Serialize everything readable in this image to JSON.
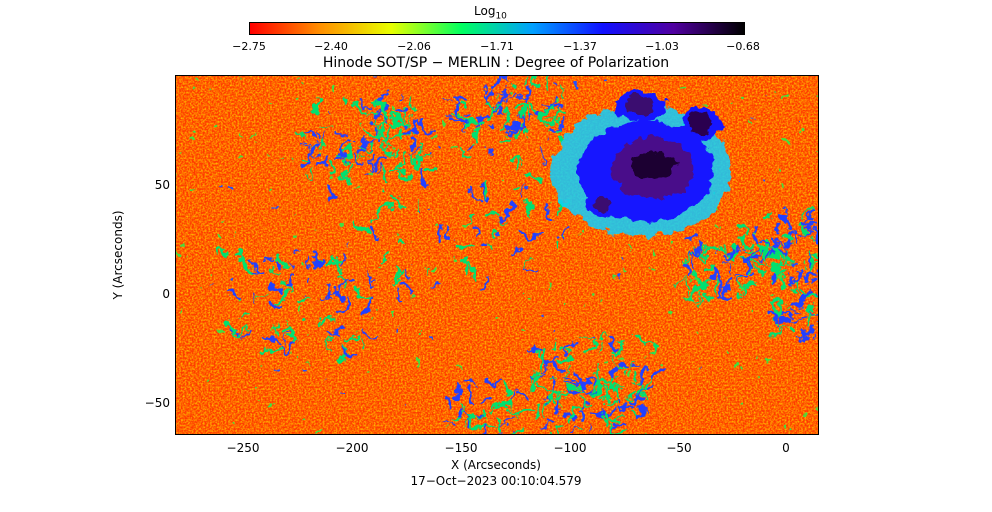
{
  "colorbar": {
    "title": "Log",
    "title_sub": "10",
    "ticks": [
      "−2.75",
      "−2.40",
      "−2.06",
      "−1.71",
      "−1.37",
      "−1.03",
      "−0.68"
    ],
    "colors": [
      "#ff0000",
      "#ff9000",
      "#e8ff00",
      "#00ff60",
      "#00a0ff",
      "#1010ff",
      "#5000a0",
      "#000000"
    ]
  },
  "plot": {
    "title": "Hinode SOT/SP − MERLIN : Degree of Polarization",
    "xlabel": "X (Arcseconds)",
    "ylabel": "Y (Arcseconds)",
    "x_ticks": [
      "−250",
      "−200",
      "−150",
      "−100",
      "−50",
      "0"
    ],
    "y_ticks": [
      "50",
      "0",
      "−50"
    ],
    "x_range": [
      -280,
      15
    ],
    "y_range": [
      -65,
      100
    ],
    "x_tick_values": [
      -250,
      -200,
      -150,
      -100,
      -50,
      0
    ],
    "y_tick_values": [
      50,
      0,
      -50
    ]
  },
  "footer": {
    "timestamp": "17−Oct−2023 00:10:04.579"
  }
}
